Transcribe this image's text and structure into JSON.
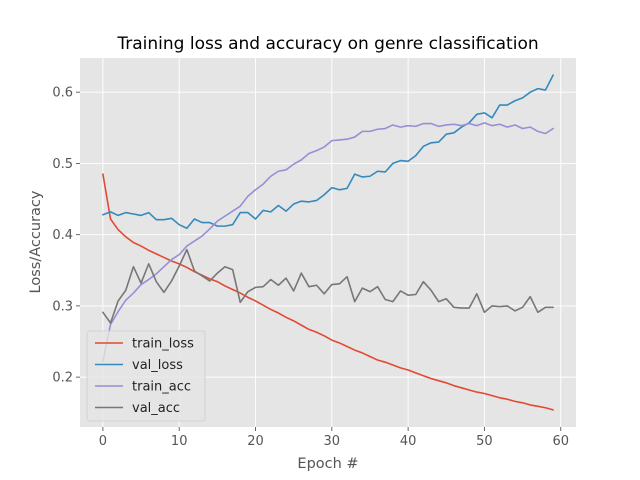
{
  "chart_data": {
    "type": "line",
    "title": "Training loss and accuracy on genre classification",
    "xlabel": "Epoch #",
    "ylabel": "Loss/Accuracy",
    "xlim": [
      -3.0,
      62.0
    ],
    "ylim": [
      0.13,
      0.648
    ],
    "xticks": [
      0,
      10,
      20,
      30,
      40,
      50,
      60
    ],
    "yticks": [
      0.2,
      0.3,
      0.4,
      0.5,
      0.6
    ],
    "grid": true,
    "legend_position": "lower-left",
    "x": [
      0,
      1,
      2,
      3,
      4,
      5,
      6,
      7,
      8,
      9,
      10,
      11,
      12,
      13,
      14,
      15,
      16,
      17,
      18,
      19,
      20,
      21,
      22,
      23,
      24,
      25,
      26,
      27,
      28,
      29,
      30,
      31,
      32,
      33,
      34,
      35,
      36,
      37,
      38,
      39,
      40,
      41,
      42,
      43,
      44,
      45,
      46,
      47,
      48,
      49,
      50,
      51,
      52,
      53,
      54,
      55,
      56,
      57,
      58,
      59
    ],
    "series": [
      {
        "name": "train_loss",
        "color": "#E24A33",
        "values": [
          0.485,
          0.422,
          0.407,
          0.397,
          0.389,
          0.384,
          0.378,
          0.373,
          0.368,
          0.363,
          0.359,
          0.354,
          0.348,
          0.343,
          0.338,
          0.334,
          0.328,
          0.323,
          0.318,
          0.312,
          0.307,
          0.301,
          0.295,
          0.29,
          0.284,
          0.279,
          0.273,
          0.267,
          0.263,
          0.258,
          0.252,
          0.248,
          0.243,
          0.238,
          0.234,
          0.229,
          0.224,
          0.221,
          0.217,
          0.213,
          0.21,
          0.206,
          0.202,
          0.198,
          0.195,
          0.192,
          0.188,
          0.185,
          0.182,
          0.179,
          0.177,
          0.174,
          0.171,
          0.169,
          0.166,
          0.164,
          0.161,
          0.159,
          0.157,
          0.154
        ]
      },
      {
        "name": "val_loss",
        "color": "#348ABD",
        "values": [
          0.428,
          0.432,
          0.427,
          0.431,
          0.429,
          0.427,
          0.431,
          0.421,
          0.421,
          0.423,
          0.414,
          0.409,
          0.422,
          0.417,
          0.417,
          0.412,
          0.412,
          0.414,
          0.431,
          0.431,
          0.422,
          0.434,
          0.432,
          0.441,
          0.433,
          0.443,
          0.447,
          0.446,
          0.448,
          0.456,
          0.466,
          0.463,
          0.465,
          0.485,
          0.481,
          0.482,
          0.489,
          0.488,
          0.5,
          0.504,
          0.503,
          0.511,
          0.524,
          0.529,
          0.53,
          0.541,
          0.543,
          0.551,
          0.557,
          0.569,
          0.571,
          0.564,
          0.582,
          0.582,
          0.588,
          0.592,
          0.6,
          0.605,
          0.603,
          0.624
        ]
      },
      {
        "name": "train_acc",
        "color": "#988ED5",
        "values": [
          0.222,
          0.274,
          0.292,
          0.308,
          0.318,
          0.33,
          0.337,
          0.345,
          0.355,
          0.365,
          0.372,
          0.384,
          0.391,
          0.398,
          0.408,
          0.419,
          0.426,
          0.433,
          0.44,
          0.454,
          0.463,
          0.471,
          0.482,
          0.489,
          0.491,
          0.499,
          0.505,
          0.514,
          0.518,
          0.523,
          0.532,
          0.533,
          0.534,
          0.537,
          0.545,
          0.545,
          0.548,
          0.549,
          0.554,
          0.551,
          0.553,
          0.552,
          0.556,
          0.556,
          0.552,
          0.554,
          0.555,
          0.553,
          0.556,
          0.553,
          0.557,
          0.553,
          0.555,
          0.551,
          0.554,
          0.549,
          0.551,
          0.545,
          0.542,
          0.549
        ]
      },
      {
        "name": "val_acc",
        "color": "#777777",
        "values": [
          0.291,
          0.276,
          0.307,
          0.322,
          0.355,
          0.332,
          0.359,
          0.334,
          0.319,
          0.335,
          0.356,
          0.379,
          0.349,
          0.342,
          0.335,
          0.346,
          0.355,
          0.351,
          0.305,
          0.32,
          0.326,
          0.327,
          0.337,
          0.329,
          0.339,
          0.321,
          0.346,
          0.327,
          0.329,
          0.317,
          0.33,
          0.331,
          0.341,
          0.306,
          0.325,
          0.32,
          0.327,
          0.309,
          0.306,
          0.321,
          0.315,
          0.316,
          0.334,
          0.322,
          0.306,
          0.31,
          0.298,
          0.297,
          0.297,
          0.317,
          0.291,
          0.3,
          0.299,
          0.3,
          0.293,
          0.298,
          0.313,
          0.291,
          0.298,
          0.298
        ]
      }
    ]
  }
}
